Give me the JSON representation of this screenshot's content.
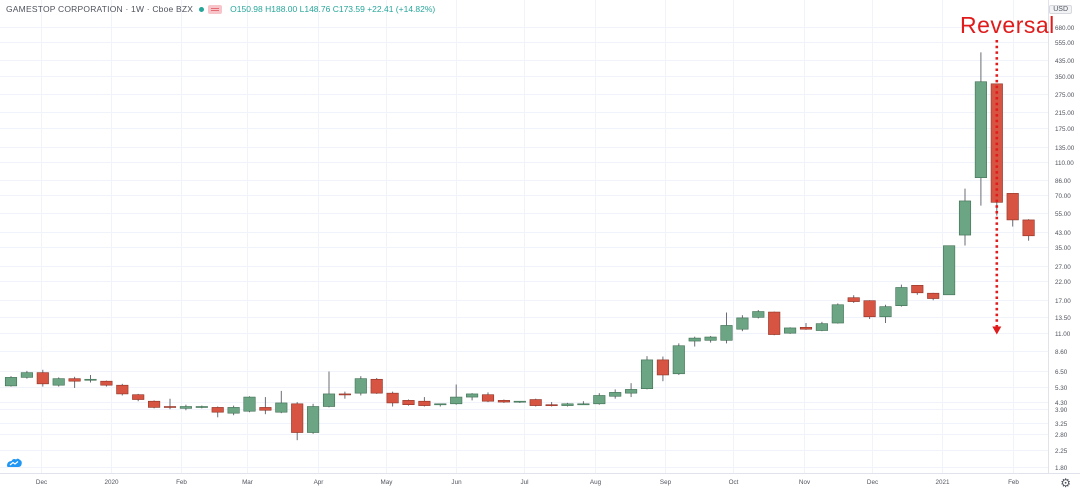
{
  "header": {
    "symbol": "GAMESTOP CORPORATION · 1W · Cboe BZX",
    "ohlc": "O150.98 H188.00 L148.76 C173.59 +22.41 (+14.82%)"
  },
  "currency": "USD",
  "annotation": {
    "text": "Reversal",
    "color": "#e01b1b"
  },
  "colors": {
    "up": "#6ba583",
    "down": "#d75442",
    "grid": "#f0f3fa",
    "text": "#50535e"
  },
  "icons": {
    "logo": "tradingview-logo-icon",
    "settings": "gear-icon"
  },
  "chart_data": {
    "type": "candlestick",
    "title": "GAMESTOP CORPORATION",
    "interval": "1W",
    "exchange": "Cboe BZX",
    "scale": "log",
    "ylim": [
      1.65,
      980
    ],
    "y_ticks": [
      "1.80",
      "2.25",
      "2.80",
      "3.25",
      "3.90",
      "4.30",
      "5.30",
      "6.50",
      "8.60",
      "11.00",
      "13.50",
      "17.00",
      "22.00",
      "27.00",
      "35.00",
      "43.00",
      "55.00",
      "70.00",
      "86.00",
      "110.00",
      "135.00",
      "175.00",
      "215.00",
      "275.00",
      "350.00",
      "435.00",
      "555.00",
      "680.00",
      "860.00"
    ],
    "x_labels": [
      {
        "label": "Dec",
        "date": "2019-12-01"
      },
      {
        "label": "2020",
        "date": "2020-01-01"
      },
      {
        "label": "Feb",
        "date": "2020-02-01"
      },
      {
        "label": "Mar",
        "date": "2020-03-01"
      },
      {
        "label": "Apr",
        "date": "2020-04-01"
      },
      {
        "label": "May",
        "date": "2020-05-01"
      },
      {
        "label": "Jun",
        "date": "2020-06-01"
      },
      {
        "label": "Jul",
        "date": "2020-07-01"
      },
      {
        "label": "Aug",
        "date": "2020-08-01"
      },
      {
        "label": "Sep",
        "date": "2020-09-01"
      },
      {
        "label": "Oct",
        "date": "2020-10-01"
      },
      {
        "label": "Nov",
        "date": "2020-11-01"
      },
      {
        "label": "Dec",
        "date": "2020-12-01"
      },
      {
        "label": "2021",
        "date": "2021-01-01"
      },
      {
        "label": "Feb",
        "date": "2021-02-01"
      }
    ],
    "candles": [
      {
        "date": "2019-11-18",
        "open": 5.35,
        "high": 6.1,
        "low": 5.3,
        "close": 6.0
      },
      {
        "date": "2019-11-25",
        "open": 6.0,
        "high": 6.55,
        "low": 5.9,
        "close": 6.4
      },
      {
        "date": "2019-12-02",
        "open": 6.4,
        "high": 6.65,
        "low": 5.3,
        "close": 5.5
      },
      {
        "date": "2019-12-09",
        "open": 5.4,
        "high": 6.0,
        "low": 5.3,
        "close": 5.9
      },
      {
        "date": "2019-12-16",
        "open": 5.9,
        "high": 6.05,
        "low": 5.2,
        "close": 5.7
      },
      {
        "date": "2019-12-23",
        "open": 5.8,
        "high": 6.2,
        "low": 5.6,
        "close": 5.85
      },
      {
        "date": "2019-12-30",
        "open": 5.7,
        "high": 5.75,
        "low": 5.3,
        "close": 5.4
      },
      {
        "date": "2020-01-06",
        "open": 5.4,
        "high": 5.5,
        "low": 4.7,
        "close": 4.8
      },
      {
        "date": "2020-01-13",
        "open": 4.75,
        "high": 4.8,
        "low": 4.35,
        "close": 4.45
      },
      {
        "date": "2020-01-20",
        "open": 4.35,
        "high": 4.4,
        "low": 3.95,
        "close": 4.0
      },
      {
        "date": "2020-01-27",
        "open": 4.05,
        "high": 4.5,
        "low": 3.9,
        "close": 4.0
      },
      {
        "date": "2020-02-03",
        "open": 3.95,
        "high": 4.15,
        "low": 3.85,
        "close": 4.05
      },
      {
        "date": "2020-02-10",
        "open": 4.0,
        "high": 4.1,
        "low": 3.95,
        "close": 4.05
      },
      {
        "date": "2020-02-17",
        "open": 4.0,
        "high": 4.05,
        "low": 3.5,
        "close": 3.75
      },
      {
        "date": "2020-02-24",
        "open": 3.7,
        "high": 4.1,
        "low": 3.6,
        "close": 4.0
      },
      {
        "date": "2020-03-02",
        "open": 3.8,
        "high": 4.65,
        "low": 3.75,
        "close": 4.6
      },
      {
        "date": "2020-03-09",
        "open": 4.0,
        "high": 4.6,
        "low": 3.65,
        "close": 3.85
      },
      {
        "date": "2020-03-16",
        "open": 3.75,
        "high": 5.0,
        "low": 3.7,
        "close": 4.25
      },
      {
        "date": "2020-03-23",
        "open": 4.2,
        "high": 4.3,
        "low": 2.57,
        "close": 2.85
      },
      {
        "date": "2020-03-30",
        "open": 2.85,
        "high": 4.2,
        "low": 2.8,
        "close": 4.05
      },
      {
        "date": "2020-04-06",
        "open": 4.05,
        "high": 6.5,
        "low": 4.0,
        "close": 4.8
      },
      {
        "date": "2020-04-13",
        "open": 4.8,
        "high": 4.95,
        "low": 4.5,
        "close": 4.75
      },
      {
        "date": "2020-04-20",
        "open": 4.85,
        "high": 6.1,
        "low": 4.7,
        "close": 5.9
      },
      {
        "date": "2020-04-27",
        "open": 5.85,
        "high": 5.95,
        "low": 4.8,
        "close": 4.85
      },
      {
        "date": "2020-05-04",
        "open": 4.85,
        "high": 4.95,
        "low": 4.05,
        "close": 4.25
      },
      {
        "date": "2020-05-11",
        "open": 4.4,
        "high": 4.45,
        "low": 4.1,
        "close": 4.15
      },
      {
        "date": "2020-05-18",
        "open": 4.35,
        "high": 4.6,
        "low": 4.05,
        "close": 4.1
      },
      {
        "date": "2020-05-25",
        "open": 4.15,
        "high": 4.2,
        "low": 4.05,
        "close": 4.2
      },
      {
        "date": "2020-06-01",
        "open": 4.2,
        "high": 5.45,
        "low": 4.15,
        "close": 4.6
      },
      {
        "date": "2020-06-08",
        "open": 4.6,
        "high": 4.85,
        "low": 4.4,
        "close": 4.8
      },
      {
        "date": "2020-06-15",
        "open": 4.75,
        "high": 4.9,
        "low": 4.3,
        "close": 4.35
      },
      {
        "date": "2020-06-22",
        "open": 4.4,
        "high": 4.45,
        "low": 4.25,
        "close": 4.3
      },
      {
        "date": "2020-06-29",
        "open": 4.3,
        "high": 4.35,
        "low": 4.25,
        "close": 4.35
      },
      {
        "date": "2020-07-06",
        "open": 4.45,
        "high": 4.5,
        "low": 4.05,
        "close": 4.1
      },
      {
        "date": "2020-07-13",
        "open": 4.15,
        "high": 4.3,
        "low": 4.05,
        "close": 4.1
      },
      {
        "date": "2020-07-20",
        "open": 4.1,
        "high": 4.25,
        "low": 4.05,
        "close": 4.2
      },
      {
        "date": "2020-07-27",
        "open": 4.2,
        "high": 4.35,
        "low": 4.15,
        "close": 4.2
      },
      {
        "date": "2020-08-03",
        "open": 4.2,
        "high": 4.85,
        "low": 4.15,
        "close": 4.7
      },
      {
        "date": "2020-08-10",
        "open": 4.65,
        "high": 5.1,
        "low": 4.5,
        "close": 4.9
      },
      {
        "date": "2020-08-17",
        "open": 4.85,
        "high": 5.55,
        "low": 4.6,
        "close": 5.1
      },
      {
        "date": "2020-08-24",
        "open": 5.15,
        "high": 8.0,
        "low": 5.1,
        "close": 7.6
      },
      {
        "date": "2020-08-31",
        "open": 7.6,
        "high": 7.95,
        "low": 5.7,
        "close": 6.2
      },
      {
        "date": "2020-09-07",
        "open": 6.3,
        "high": 9.5,
        "low": 6.2,
        "close": 9.2
      },
      {
        "date": "2020-09-14",
        "open": 9.8,
        "high": 10.4,
        "low": 9.1,
        "close": 10.2
      },
      {
        "date": "2020-09-21",
        "open": 9.9,
        "high": 10.5,
        "low": 9.6,
        "close": 10.35
      },
      {
        "date": "2020-09-28",
        "open": 9.9,
        "high": 14.4,
        "low": 9.5,
        "close": 12.1
      },
      {
        "date": "2020-10-05",
        "open": 11.5,
        "high": 13.9,
        "low": 11.2,
        "close": 13.4
      },
      {
        "date": "2020-10-12",
        "open": 13.5,
        "high": 14.9,
        "low": 13.3,
        "close": 14.6
      },
      {
        "date": "2020-10-19",
        "open": 14.5,
        "high": 14.6,
        "low": 10.6,
        "close": 10.7
      },
      {
        "date": "2020-10-26",
        "open": 10.9,
        "high": 11.8,
        "low": 10.8,
        "close": 11.7
      },
      {
        "date": "2020-11-02",
        "open": 11.8,
        "high": 12.5,
        "low": 11.4,
        "close": 11.5
      },
      {
        "date": "2020-11-09",
        "open": 11.3,
        "high": 12.7,
        "low": 11.2,
        "close": 12.4
      },
      {
        "date": "2020-11-16",
        "open": 12.5,
        "high": 16.3,
        "low": 12.4,
        "close": 16.0
      },
      {
        "date": "2020-11-23",
        "open": 17.6,
        "high": 18.2,
        "low": 16.4,
        "close": 16.7
      },
      {
        "date": "2020-11-30",
        "open": 16.9,
        "high": 17.0,
        "low": 13.2,
        "close": 13.6
      },
      {
        "date": "2020-12-07",
        "open": 13.6,
        "high": 16.0,
        "low": 12.5,
        "close": 15.6
      },
      {
        "date": "2020-12-14",
        "open": 15.8,
        "high": 21.0,
        "low": 15.6,
        "close": 20.2
      },
      {
        "date": "2020-12-21",
        "open": 20.8,
        "high": 20.9,
        "low": 18.3,
        "close": 18.8
      },
      {
        "date": "2020-12-28",
        "open": 18.7,
        "high": 18.8,
        "low": 17.0,
        "close": 17.4
      },
      {
        "date": "2021-01-04",
        "open": 18.3,
        "high": 35.5,
        "low": 18.3,
        "close": 35.5
      },
      {
        "date": "2021-01-11",
        "open": 41.0,
        "high": 76.8,
        "low": 35.6,
        "close": 65.0
      },
      {
        "date": "2021-01-18",
        "open": 89.0,
        "high": 483.0,
        "low": 61.0,
        "close": 325.0
      },
      {
        "date": "2021-01-25",
        "open": 316.0,
        "high": 316.0,
        "low": 53.3,
        "close": 63.8
      },
      {
        "date": "2021-02-01",
        "open": 72.0,
        "high": 72.0,
        "low": 46.0,
        "close": 50.3
      },
      {
        "date": "2021-02-08",
        "open": 50.3,
        "high": 50.8,
        "low": 38.0,
        "close": 40.6
      }
    ],
    "annotations": [
      {
        "text": "Reversal",
        "type": "arrow",
        "from_price": 425,
        "to_price": 11.0,
        "date": "2021-01-25"
      }
    ]
  }
}
